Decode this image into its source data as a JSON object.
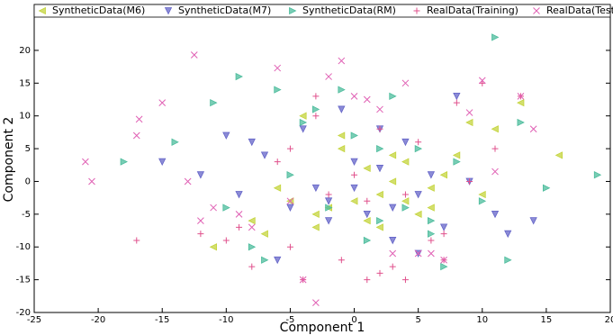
{
  "chart_data": {
    "type": "scatter",
    "x_label": "Component 1",
    "y_label": "Component 2",
    "xlim": [
      -25,
      20
    ],
    "ylim": [
      -20,
      27
    ],
    "xticks": [
      -25,
      -20,
      -15,
      -10,
      -5,
      0,
      5,
      10,
      15,
      20
    ],
    "yticks": [
      -20,
      -15,
      -10,
      -5,
      0,
      5,
      10,
      15,
      20
    ],
    "legend_loc": "upper",
    "series": [
      {
        "name": "SyntheticData(M6)",
        "color": "#c4d43c",
        "marker": "<",
        "x": [
          -8,
          -7,
          -5,
          -4,
          -3,
          -2,
          -1,
          0,
          1,
          2,
          3,
          4,
          5,
          6,
          7,
          8,
          9,
          11,
          13,
          16,
          -11,
          -6,
          -3,
          1,
          3,
          6,
          2,
          -1,
          4,
          10
        ],
        "values": [
          -6,
          -8,
          -3,
          10,
          -7,
          -4,
          5,
          -3,
          2,
          -2,
          0,
          3,
          -5,
          -1,
          1,
          4,
          9,
          8,
          12,
          4,
          -10,
          -1,
          -5,
          -6,
          4,
          -4,
          -7,
          7,
          -3,
          -2
        ]
      },
      {
        "name": "SyntheticData(M7)",
        "color": "#6464c8",
        "marker": "v",
        "x": [
          -12,
          -10,
          -9,
          -7,
          -5,
          -4,
          -3,
          -2,
          -1,
          0,
          1,
          2,
          3,
          4,
          5,
          6,
          7,
          9,
          11,
          14,
          -15,
          -6,
          -2,
          2,
          5,
          8,
          0,
          3,
          -8,
          12
        ],
        "values": [
          1,
          7,
          -2,
          4,
          -4,
          8,
          -1,
          -6,
          11,
          3,
          -5,
          8,
          -9,
          6,
          -2,
          1,
          -7,
          0,
          -5,
          -6,
          3,
          -12,
          -3,
          2,
          -11,
          13,
          -1,
          -4,
          6,
          -8
        ]
      },
      {
        "name": "SyntheticData(RM)",
        "color": "#4cbc9c",
        "marker": ">",
        "x": [
          -18,
          -14,
          -11,
          -9,
          -8,
          -6,
          -5,
          -3,
          -2,
          -1,
          0,
          1,
          2,
          3,
          4,
          5,
          6,
          7,
          8,
          10,
          11,
          13,
          15,
          19,
          -10,
          -4,
          2,
          6,
          -7,
          12
        ],
        "values": [
          3,
          6,
          12,
          16,
          -10,
          14,
          1,
          11,
          -4,
          14,
          7,
          -9,
          -6,
          13,
          -4,
          5,
          -6,
          -13,
          3,
          -3,
          22,
          9,
          -1,
          1,
          -4,
          9,
          5,
          -8,
          -12,
          -12
        ]
      },
      {
        "name": "RealData(Training)",
        "color": "#e0508c",
        "marker": "+",
        "x": [
          -17,
          -12,
          -10,
          -8,
          -6,
          -5,
          -4,
          -3,
          -2,
          -1,
          0,
          1,
          2,
          3,
          4,
          5,
          6,
          7,
          8,
          9,
          10,
          13,
          -9,
          -3,
          1,
          4,
          -5,
          2,
          7,
          11
        ],
        "values": [
          -9,
          -8,
          -9,
          -13,
          3,
          -10,
          -15,
          13,
          -2,
          -12,
          1,
          -3,
          -14,
          -13,
          -15,
          6,
          -9,
          -8,
          12,
          0,
          15,
          13,
          -7,
          10,
          -15,
          -2,
          5,
          8,
          -12,
          5
        ]
      },
      {
        "name": "RealData(Test)",
        "color": "#e060b4",
        "marker": "x",
        "x": [
          -21,
          -20.5,
          -17,
          -16.8,
          -13,
          -12.5,
          -9,
          -6,
          -4,
          -2,
          -1,
          0,
          1,
          3,
          4,
          5,
          7,
          9,
          10,
          13,
          14,
          -15,
          -12,
          -8,
          -3,
          2,
          6,
          11,
          -11,
          -5
        ],
        "values": [
          3,
          0,
          7,
          9.5,
          0,
          19.3,
          -5,
          17.3,
          -15,
          16,
          18.4,
          13,
          12.5,
          -11,
          15,
          -11,
          -12,
          10.5,
          15.4,
          13,
          8,
          12,
          -6,
          -7,
          -18.5,
          11,
          -11,
          1.5,
          -4,
          -3
        ]
      }
    ]
  }
}
